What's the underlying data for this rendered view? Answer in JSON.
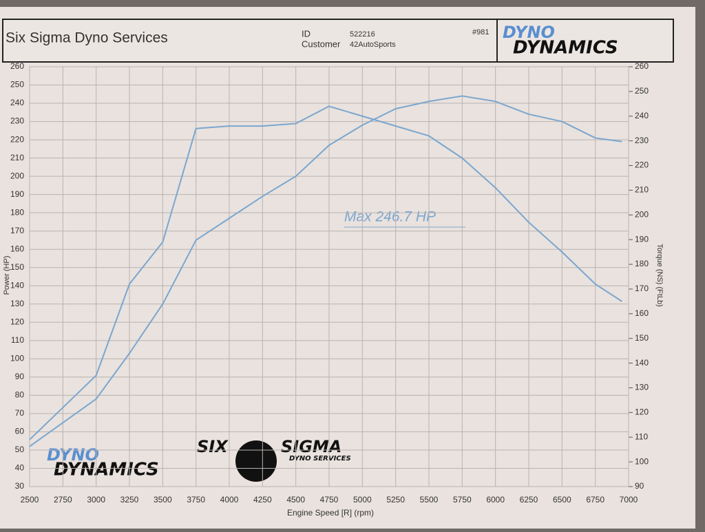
{
  "header": {
    "title": "Six Sigma Dyno Services",
    "id_label": "ID",
    "id": "522216",
    "customer_label": "Customer",
    "customer": "42AutoSports",
    "run": "#981",
    "logo_top": "DYNO",
    "logo_bottom": "DYNAMICS"
  },
  "logos": {
    "dyno": "DYNO",
    "dynamics": "DYNAMICS",
    "six": "SIX",
    "sigma": "SIGMA",
    "services": "DYNO SERVICES"
  },
  "chart_data": {
    "type": "line",
    "annotation": "Max 246.7 HP",
    "x_label": "Engine Speed [R] (rpm)",
    "y_label": "Power (HP)",
    "y2_label": "Torque (NS) (FtLb)",
    "x": [
      2500,
      2750,
      3000,
      3250,
      3500,
      3750,
      4000,
      4250,
      4500,
      4750,
      5000,
      5250,
      5500,
      5750,
      6000,
      6250,
      6500,
      6750,
      6950
    ],
    "series": [
      {
        "name": "Power (HP)",
        "color": "#7aa6cf",
        "values": [
          52,
          65,
          78,
          103,
          130,
          165,
          177,
          189,
          200,
          217,
          228,
          237,
          241,
          244,
          241,
          234,
          230,
          221,
          219
        ]
      },
      {
        "name": "Torque (NS) (FtLb)",
        "color": "#7aa6cf",
        "axis": "y2",
        "values": [
          109,
          122,
          135,
          172,
          189,
          235,
          236,
          236,
          237,
          244,
          240,
          236,
          232,
          223,
          211,
          197,
          185,
          172,
          165
        ]
      }
    ],
    "xlim": [
      2500,
      7000
    ],
    "xticks": [
      2500,
      2750,
      3000,
      3250,
      3500,
      3750,
      4000,
      4250,
      4500,
      4750,
      5000,
      5250,
      5500,
      5750,
      6000,
      6250,
      6500,
      6750,
      7000
    ],
    "ylim": [
      30,
      260
    ],
    "yticks": [
      30,
      40,
      50,
      60,
      70,
      80,
      90,
      100,
      110,
      120,
      130,
      140,
      150,
      160,
      170,
      180,
      190,
      200,
      210,
      220,
      230,
      240,
      250,
      260
    ],
    "y2lim": [
      90,
      260
    ],
    "y2ticks": [
      90,
      100,
      110,
      120,
      130,
      140,
      150,
      160,
      170,
      180,
      190,
      200,
      210,
      220,
      230,
      240,
      250,
      260
    ],
    "grid": true
  }
}
